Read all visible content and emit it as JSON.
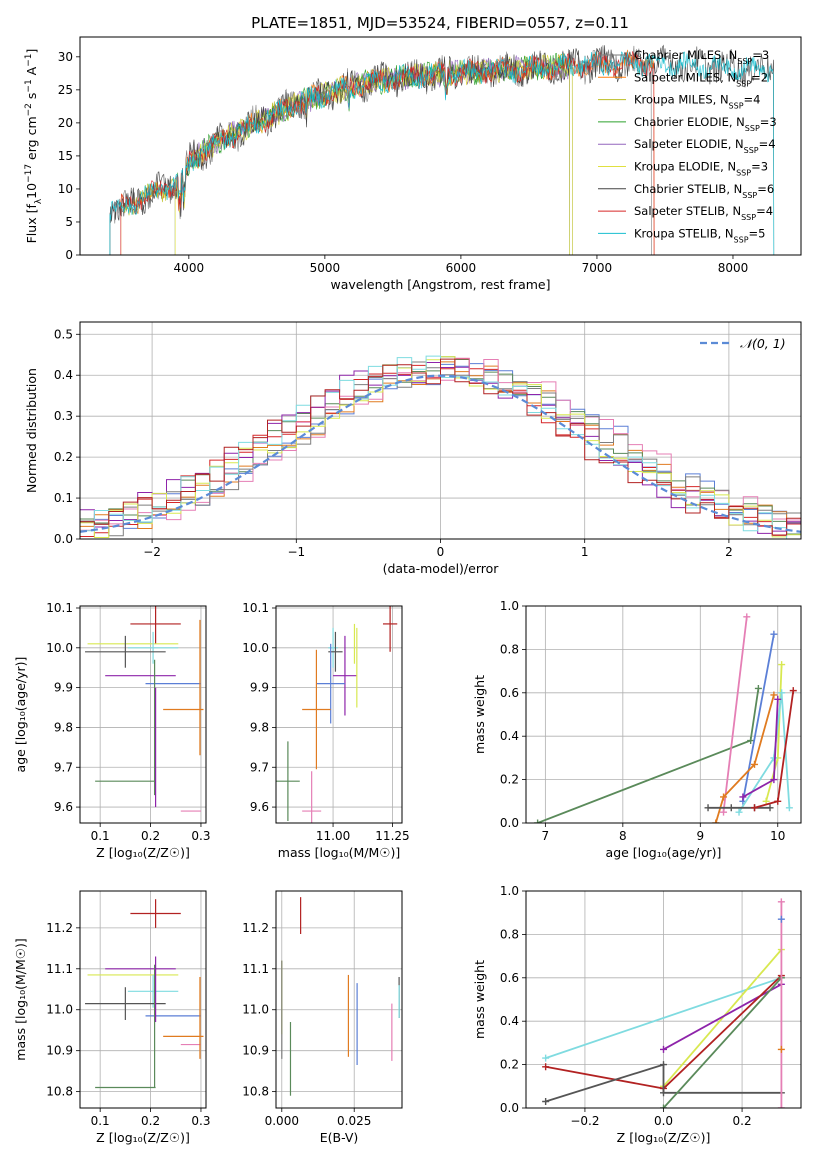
{
  "figure": {
    "title": "PLATE=1851, MJD=53524, FIBERID=0557, z=0.11"
  },
  "colors": {
    "Chabrier MILES": "#7e7e7e",
    "Salpeter MILES": "#ff7f0e",
    "Kroupa MILES": "#bcbd22",
    "Chabrier ELODIE": "#2ca02c",
    "Salpeter ELODIE": "#9467bd",
    "Kroupa ELODIE": "#e0e040",
    "Chabrier STELIB": "#444444",
    "Salpeter STELIB": "#d62728",
    "Kroupa STELIB": "#17becf",
    "green": "#5a8a5a",
    "purple": "#8e24aa",
    "orange": "#e07b20",
    "blue": "#5b7fd6",
    "pink": "#e57fb5",
    "cyan": "#7fdbe0",
    "yellow": "#d8e850",
    "dark": "#555555",
    "red": "#b22222",
    "normal": "#5b8bd6"
  },
  "chart_data": [
    {
      "id": "spectrum",
      "type": "line",
      "xlabel": "wavelength [Angstrom, rest frame]",
      "ylabel_parts": [
        "Flux [f",
        "λ",
        "10",
        "−17",
        " erg cm",
        "−2",
        " s",
        "−1",
        " A",
        "−1",
        "]"
      ],
      "xlim": [
        3200,
        8500
      ],
      "ylim": [
        0,
        33
      ],
      "xticks": [
        4000,
        5000,
        6000,
        7000,
        8000
      ],
      "yticks": [
        0,
        5,
        10,
        15,
        20,
        25,
        30
      ],
      "grid": false,
      "legend_position": "top-right",
      "legend": [
        {
          "name": "Chabrier MILES",
          "n": "3",
          "color": "#7e7e7e"
        },
        {
          "name": "Salpeter MILES",
          "n": "2",
          "color": "#ff7f0e"
        },
        {
          "name": "Kroupa MILES",
          "n": "4",
          "color": "#bcbd22"
        },
        {
          "name": "Chabrier ELODIE",
          "n": "3",
          "color": "#2ca02c"
        },
        {
          "name": "Salpeter ELODIE",
          "n": "4",
          "color": "#9467bd"
        },
        {
          "name": "Kroupa ELODIE",
          "n": "3",
          "color": "#e0e040"
        },
        {
          "name": "Chabrier STELIB",
          "n": "6",
          "color": "#444444"
        },
        {
          "name": "Salpeter STELIB",
          "n": "4",
          "color": "#d62728"
        },
        {
          "name": "Kroupa STELIB",
          "n": "5",
          "color": "#17becf"
        }
      ],
      "continuum": [
        [
          3420,
          6.5
        ],
        [
          3600,
          8
        ],
        [
          3800,
          10
        ],
        [
          3950,
          11
        ],
        [
          4000,
          14
        ],
        [
          4200,
          17
        ],
        [
          4500,
          20
        ],
        [
          4800,
          23
        ],
        [
          5100,
          25
        ],
        [
          5300,
          26
        ],
        [
          5600,
          27
        ],
        [
          5900,
          27.5
        ],
        [
          6300,
          28
        ],
        [
          6700,
          28.5
        ],
        [
          7100,
          29
        ],
        [
          7500,
          29
        ],
        [
          7900,
          28.5
        ],
        [
          8300,
          28
        ]
      ],
      "series": [
        {
          "name": "Chabrier MILES",
          "x_range": [
            3420,
            7400
          ],
          "color": "#7e7e7e"
        },
        {
          "name": "Salpeter MILES",
          "x_range": [
            3500,
            7420
          ],
          "color": "#ff7f0e"
        },
        {
          "name": "Kroupa MILES",
          "x_range": [
            3500,
            6820
          ],
          "color": "#bcbd22"
        },
        {
          "name": "Chabrier ELODIE",
          "x_range": [
            3900,
            6800
          ],
          "color": "#2ca02c"
        },
        {
          "name": "Salpeter ELODIE",
          "x_range": [
            3900,
            6800
          ],
          "color": "#9467bd"
        },
        {
          "name": "Kroupa ELODIE",
          "x_range": [
            3900,
            6800
          ],
          "color": "#e0e040"
        },
        {
          "name": "Chabrier STELIB",
          "x_range": [
            3420,
            8300
          ],
          "color": "#444444"
        },
        {
          "name": "Salpeter STELIB",
          "x_range": [
            3500,
            7420
          ],
          "color": "#d62728"
        },
        {
          "name": "Kroupa STELIB",
          "x_range": [
            3420,
            8300
          ],
          "color": "#17becf"
        }
      ]
    },
    {
      "id": "residuals",
      "type": "histogram",
      "xlabel": "(data-model)/error",
      "ylabel": "Normed distribution",
      "xlim": [
        -2.5,
        2.5
      ],
      "ylim": [
        0,
        0.53
      ],
      "xticks": [
        -2,
        -1,
        0,
        1,
        2
      ],
      "xticklabels": [
        "−2",
        "−1",
        "0",
        "1",
        "2"
      ],
      "yticks": [
        0.0,
        0.1,
        0.2,
        0.3,
        0.4,
        0.5
      ],
      "grid": true,
      "bins": 50,
      "bin_width": 0.1,
      "normal_label": "𝒩(0, 1)",
      "legend_position": "top-right",
      "series_colors": [
        "#5b7fd6",
        "#e07b20",
        "#5a8a5a",
        "#d62728",
        "#8e24aa",
        "#e57fb5",
        "#7e7e7e",
        "#d8e850",
        "#7fdbe0",
        "#b22222"
      ]
    },
    {
      "id": "age_vs_Z",
      "type": "errorbar",
      "xlabel": "Z [log₁₀(Z/Z☉)]",
      "ylabel": "age  [log₁₀(age/yr)]",
      "xlim": [
        0.06,
        0.31
      ],
      "ylim": [
        9.56,
        10.105
      ],
      "xticks": [
        0.1,
        0.2,
        0.3
      ],
      "yticks": [
        9.6,
        9.7,
        9.8,
        9.9,
        10.0,
        10.1
      ],
      "grid": true,
      "points": [
        {
          "x": 0.21,
          "y": 10.06,
          "xerr": 0.05,
          "yerr": 0.05,
          "color": "#b22222"
        },
        {
          "x": 0.165,
          "y": 10.01,
          "xerr": 0.09,
          "yerr": 0.0,
          "color": "#d8e850"
        },
        {
          "x": 0.205,
          "y": 10.0,
          "xerr": 0.05,
          "yerr": 0.04,
          "color": "#7fdbe0"
        },
        {
          "x": 0.15,
          "y": 9.99,
          "xerr": 0.08,
          "yerr": 0.04,
          "color": "#555555"
        },
        {
          "x": 0.18,
          "y": 9.93,
          "xerr": 0.07,
          "yerr": 0.0,
          "color": "#8e24aa"
        },
        {
          "x": 0.245,
          "y": 9.91,
          "xerr": 0.055,
          "yerr": 0.0,
          "color": "#5b7fd6"
        },
        {
          "x": 0.265,
          "y": 9.845,
          "xerr": 0.04,
          "yerr": 0.0,
          "color": "#e07b20"
        },
        {
          "x": 0.15,
          "y": 9.665,
          "xerr": 0.06,
          "yerr": 0.0,
          "color": "#5a8a5a"
        },
        {
          "x": 0.28,
          "y": 9.59,
          "xerr": 0.02,
          "yerr": 0.0,
          "color": "#e57fb5"
        },
        {
          "x": 0.298,
          "y": 9.9,
          "xerr": 0.0,
          "yerr": 0.17,
          "color": "#e07b20"
        },
        {
          "x": 0.208,
          "y": 9.8,
          "xerr": 0.0,
          "yerr": 0.17,
          "color": "#5a8a5a"
        },
        {
          "x": 0.21,
          "y": 9.75,
          "xerr": 0.0,
          "yerr": 0.15,
          "color": "#8e24aa"
        }
      ]
    },
    {
      "id": "age_vs_mass",
      "type": "errorbar",
      "xlabel": "mass [log₁₀(M/M☉)]",
      "ylabel": "",
      "xlim": [
        10.76,
        11.29
      ],
      "ylim": [
        9.56,
        10.105
      ],
      "xticks": [
        11.0,
        11.25
      ],
      "xticklabels": [
        "11.00",
        "11.25"
      ],
      "yticks": [
        9.6,
        9.7,
        9.8,
        9.9,
        10.0,
        10.1
      ],
      "grid": true,
      "points": [
        {
          "x": 11.24,
          "y": 10.06,
          "xerr": 0.03,
          "yerr": 0.07,
          "color": "#b22222"
        },
        {
          "x": 11.09,
          "y": 10.01,
          "xerr": 0.0,
          "yerr": 0.05,
          "color": "#d8e850"
        },
        {
          "x": 11.0,
          "y": 10.0,
          "xerr": 0.02,
          "yerr": 0.05,
          "color": "#7fdbe0"
        },
        {
          "x": 11.01,
          "y": 9.99,
          "xerr": 0.03,
          "yerr": 0.05,
          "color": "#555555"
        },
        {
          "x": 11.05,
          "y": 9.93,
          "xerr": 0.05,
          "yerr": 0.1,
          "color": "#8e24aa"
        },
        {
          "x": 10.99,
          "y": 9.91,
          "xerr": 0.06,
          "yerr": 0.1,
          "color": "#5b7fd6"
        },
        {
          "x": 10.93,
          "y": 9.845,
          "xerr": 0.06,
          "yerr": 0.15,
          "color": "#e07b20"
        },
        {
          "x": 10.81,
          "y": 9.665,
          "xerr": 0.05,
          "yerr": 0.1,
          "color": "#5a8a5a"
        },
        {
          "x": 10.91,
          "y": 9.59,
          "xerr": 0.04,
          "yerr": 0.1,
          "color": "#e57fb5"
        },
        {
          "x": 11.1,
          "y": 9.95,
          "xerr": 0.0,
          "yerr": 0.1,
          "color": "#d8e850"
        }
      ]
    },
    {
      "id": "weight_vs_age",
      "type": "line",
      "xlabel": "age  [log₁₀(age/yr)]",
      "ylabel": "mass weight",
      "xlim": [
        6.75,
        10.3
      ],
      "ylim": [
        0,
        1
      ],
      "xticks": [
        7,
        8,
        9,
        10
      ],
      "yticks": [
        0.0,
        0.2,
        0.4,
        0.6,
        0.8,
        1.0
      ],
      "grid": true,
      "series": [
        {
          "color": "#5a8a5a",
          "points": [
            [
              6.9,
              0.0
            ],
            [
              9.65,
              0.38
            ],
            [
              9.75,
              0.62
            ]
          ]
        },
        {
          "color": "#e57fb5",
          "points": [
            [
              9.3,
              0.05
            ],
            [
              9.6,
              0.95
            ]
          ]
        },
        {
          "color": "#5b7fd6",
          "points": [
            [
              9.55,
              0.1
            ],
            [
              9.95,
              0.87
            ]
          ]
        },
        {
          "color": "#e07b20",
          "points": [
            [
              9.2,
              0.0
            ],
            [
              9.3,
              0.12
            ],
            [
              9.7,
              0.27
            ],
            [
              9.95,
              0.59
            ]
          ]
        },
        {
          "color": "#d8e850",
          "points": [
            [
              9.85,
              0.1
            ],
            [
              10.0,
              0.3
            ],
            [
              10.05,
              0.73
            ]
          ]
        },
        {
          "color": "#7fdbe0",
          "points": [
            [
              9.5,
              0.05
            ],
            [
              9.95,
              0.3
            ],
            [
              10.05,
              0.6
            ],
            [
              10.15,
              0.07
            ]
          ]
        },
        {
          "color": "#8e24aa",
          "points": [
            [
              9.55,
              0.12
            ],
            [
              9.95,
              0.2
            ],
            [
              10.0,
              0.57
            ]
          ]
        },
        {
          "color": "#555555",
          "points": [
            [
              9.1,
              0.07
            ],
            [
              9.4,
              0.07
            ],
            [
              9.7,
              0.07
            ],
            [
              9.9,
              0.07
            ]
          ]
        },
        {
          "color": "#b22222",
          "points": [
            [
              9.7,
              0.07
            ],
            [
              10.0,
              0.1
            ],
            [
              10.2,
              0.61
            ]
          ]
        }
      ]
    },
    {
      "id": "mass_vs_Z",
      "type": "errorbar",
      "xlabel": "Z [log₁₀(Z/Z☉)]",
      "ylabel": "mass [log₁₀(M/M☉)]",
      "xlim": [
        0.06,
        0.31
      ],
      "ylim": [
        10.76,
        11.29
      ],
      "xticks": [
        0.1,
        0.2,
        0.3
      ],
      "yticks": [
        10.8,
        10.9,
        11.0,
        11.1,
        11.2
      ],
      "grid": true,
      "points": [
        {
          "x": 0.21,
          "y": 11.235,
          "xerr": 0.05,
          "yerr": 0.035,
          "color": "#b22222"
        },
        {
          "x": 0.165,
          "y": 11.085,
          "xerr": 0.09,
          "yerr": 0.0,
          "color": "#d8e850"
        },
        {
          "x": 0.18,
          "y": 11.1,
          "xerr": 0.07,
          "yerr": 0.0,
          "color": "#8e24aa"
        },
        {
          "x": 0.205,
          "y": 11.045,
          "xerr": 0.05,
          "yerr": 0.04,
          "color": "#7fdbe0"
        },
        {
          "x": 0.15,
          "y": 11.015,
          "xerr": 0.08,
          "yerr": 0.04,
          "color": "#555555"
        },
        {
          "x": 0.245,
          "y": 10.985,
          "xerr": 0.055,
          "yerr": 0.0,
          "color": "#5b7fd6"
        },
        {
          "x": 0.265,
          "y": 10.935,
          "xerr": 0.04,
          "yerr": 0.0,
          "color": "#e07b20"
        },
        {
          "x": 0.28,
          "y": 10.915,
          "xerr": 0.02,
          "yerr": 0.0,
          "color": "#e57fb5"
        },
        {
          "x": 0.15,
          "y": 10.81,
          "xerr": 0.06,
          "yerr": 0.0,
          "color": "#5a8a5a"
        },
        {
          "x": 0.298,
          "y": 10.98,
          "xerr": 0.0,
          "yerr": 0.1,
          "color": "#e07b20"
        },
        {
          "x": 0.208,
          "y": 10.96,
          "xerr": 0.0,
          "yerr": 0.15,
          "color": "#5a8a5a"
        },
        {
          "x": 0.21,
          "y": 11.05,
          "xerr": 0.0,
          "yerr": 0.08,
          "color": "#8e24aa"
        }
      ]
    },
    {
      "id": "mass_vs_EBV",
      "type": "errorbar",
      "xlabel": "E(B-V)",
      "ylabel": "",
      "xlim": [
        -0.002,
        0.0415
      ],
      "ylim": [
        10.76,
        11.29
      ],
      "xticks": [
        0.0,
        0.025
      ],
      "xticklabels": [
        "0.000",
        "0.025"
      ],
      "yticks": [
        10.8,
        10.9,
        11.0,
        11.1,
        11.2
      ],
      "grid": true,
      "points": [
        {
          "x": 0.0065,
          "y": 11.23,
          "xerr": 0.0,
          "yerr": 0.045,
          "color": "#b22222"
        },
        {
          "x": 0.0,
          "y": 11.03,
          "xerr": 0.0,
          "yerr": 0.09,
          "color": "#d8e850"
        },
        {
          "x": 0.0,
          "y": 11.0,
          "xerr": 0.0,
          "yerr": 0.12,
          "color": "#7e7e7e"
        },
        {
          "x": 0.003,
          "y": 10.88,
          "xerr": 0.0,
          "yerr": 0.09,
          "color": "#5a8a5a"
        },
        {
          "x": 0.023,
          "y": 10.985,
          "xerr": 0.0,
          "yerr": 0.1,
          "color": "#e07b20"
        },
        {
          "x": 0.026,
          "y": 10.965,
          "xerr": 0.0,
          "yerr": 0.1,
          "color": "#5b7fd6"
        },
        {
          "x": 0.038,
          "y": 10.945,
          "xerr": 0.0,
          "yerr": 0.07,
          "color": "#e57fb5"
        },
        {
          "x": 0.0405,
          "y": 11.03,
          "xerr": 0.0,
          "yerr": 0.05,
          "color": "#555555"
        },
        {
          "x": 0.0405,
          "y": 11.02,
          "xerr": 0.0,
          "yerr": 0.04,
          "color": "#7fdbe0"
        }
      ]
    },
    {
      "id": "weight_vs_Z",
      "type": "line",
      "xlabel": "Z [log₁₀(Z/Z☉)]",
      "ylabel": "mass weight",
      "xlim": [
        -0.35,
        0.35
      ],
      "ylim": [
        0,
        1
      ],
      "xticks": [
        -0.2,
        0.0,
        0.2
      ],
      "xticklabels": [
        "−0.2",
        "0.0",
        "0.2"
      ],
      "yticks": [
        0.0,
        0.2,
        0.4,
        0.6,
        0.8,
        1.0
      ],
      "grid": true,
      "series": [
        {
          "color": "#7fdbe0",
          "points": [
            [
              -0.3,
              0.23
            ],
            [
              0.3,
              0.6
            ]
          ]
        },
        {
          "color": "#d8e850",
          "points": [
            [
              0.0,
              0.1
            ],
            [
              0.3,
              0.73
            ]
          ]
        },
        {
          "color": "#8e24aa",
          "points": [
            [
              0.0,
              0.27
            ],
            [
              0.3,
              0.57
            ]
          ]
        },
        {
          "color": "#b22222",
          "points": [
            [
              -0.3,
              0.19
            ],
            [
              0.0,
              0.09
            ],
            [
              0.3,
              0.61
            ]
          ]
        },
        {
          "color": "#555555",
          "points": [
            [
              -0.3,
              0.03
            ],
            [
              0.0,
              0.2
            ],
            [
              0.0,
              0.07
            ],
            [
              0.3,
              0.07
            ]
          ]
        },
        {
          "color": "#5a8a5a",
          "points": [
            [
              0.0,
              0.0
            ],
            [
              0.3,
              0.6
            ]
          ]
        },
        {
          "color": "#e57fb5",
          "points": [
            [
              0.3,
              0.0
            ],
            [
              0.3,
              0.95
            ]
          ]
        },
        {
          "color": "#5b7fd6",
          "points": [
            [
              0.3,
              0.87
            ]
          ]
        },
        {
          "color": "#e07b20",
          "points": [
            [
              0.3,
              0.27
            ]
          ]
        }
      ]
    }
  ]
}
